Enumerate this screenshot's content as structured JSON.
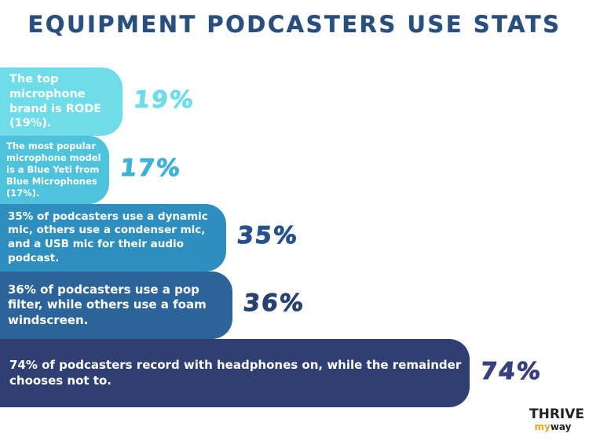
{
  "title": "EQUIPMENT PODCASTERS USE STATS",
  "colors": {
    "title": "#2a4f7c",
    "bar1": "#6fdde9",
    "bar2": "#4fc2dc",
    "bar3": "#2e8fbe",
    "bar4": "#2c649a",
    "bar5": "#2f3f72",
    "pct1": "#6fdde9",
    "pct2": "#3fb1d4",
    "pct3": "#27508c",
    "pct4": "#27426e",
    "pct5": "#3a3f7e"
  },
  "chart_data": {
    "type": "bar",
    "orientation": "horizontal",
    "title": "EQUIPMENT PODCASTERS USE STATS",
    "categories": [
      "The top microphone brand is RODE (19%).",
      "The most popular microphone model is a Blue Yeti from Blue Microphones (17%).",
      "35% of podcasters use a dynamic mic, others use a condenser mic, and a USB mic for their audio podcast.",
      "36% of podcasters use a pop filter, while others use a foam windscreen.",
      "74% of podcasters record with headphones on, while the remainder chooses not to."
    ],
    "values": [
      19,
      17,
      35,
      36,
      74
    ],
    "value_labels": [
      "19%",
      "17%",
      "35%",
      "36%",
      "74%"
    ],
    "grid": false,
    "legend": "none"
  },
  "logo": {
    "top": "THRIVE",
    "my": "my",
    "way": "way"
  }
}
